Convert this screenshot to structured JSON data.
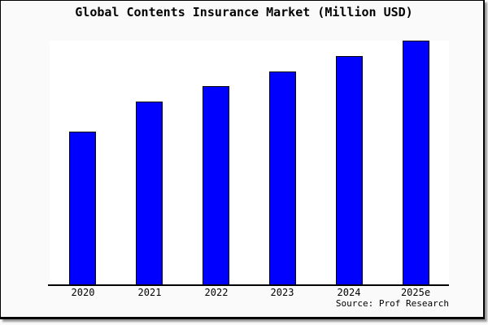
{
  "title": "Global Contents Insurance Market (Million USD)",
  "source_credit": "Source: Prof Research",
  "colors": {
    "bar_fill": "#0000ff",
    "bar_border": "#000000",
    "canvas_background": "#fafafa",
    "plot_background": "#ffffff",
    "frame_border": "#000000",
    "frame_shadow": "#999999",
    "text": "#000000"
  },
  "chart_data": {
    "type": "bar",
    "title": "Global Contents Insurance Market (Million USD)",
    "categories": [
      "2020",
      "2021",
      "2022",
      "2023",
      "2024",
      "2025e"
    ],
    "values": [
      62.7,
      75.0,
      81.3,
      87.3,
      93.7,
      100.0
    ],
    "values_note": "No y-axis shown in chart; values are bar heights as percent of tallest (2025e) bar",
    "xlabel": "",
    "ylabel": "",
    "ylim": [
      0,
      100
    ],
    "grid": false,
    "legend": false,
    "bar_color": "#0000ff",
    "annotations": [
      "Source: Prof Research"
    ]
  }
}
